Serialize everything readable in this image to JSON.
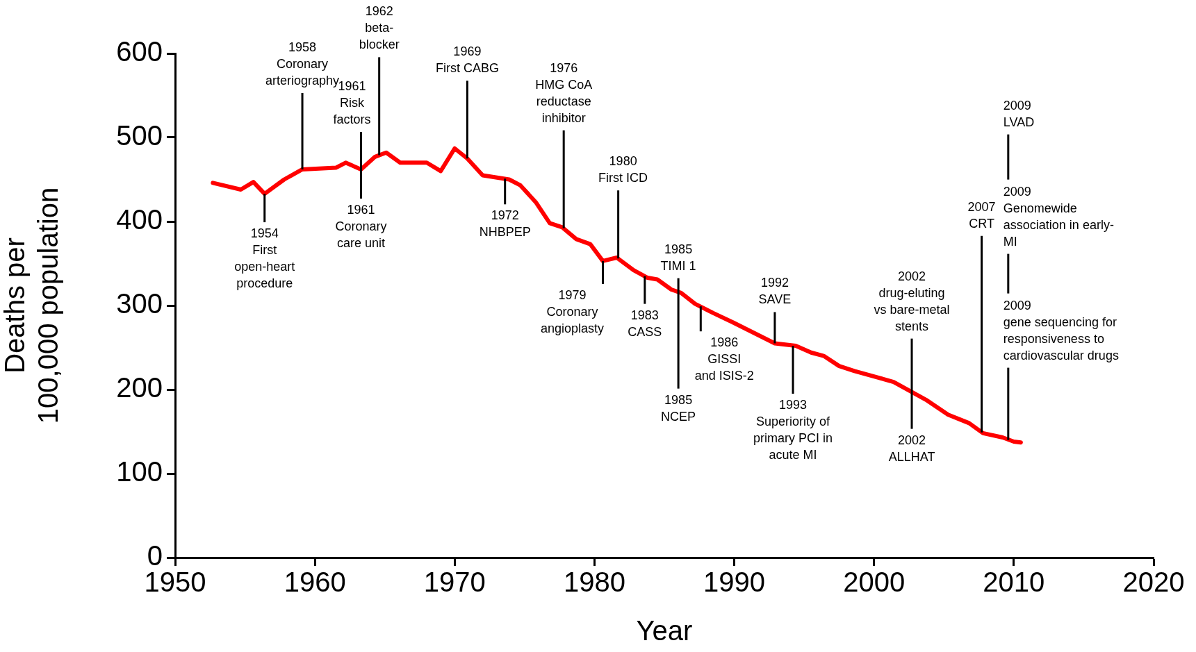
{
  "chart_data": {
    "type": "line",
    "xlabel": "Year",
    "ylabel": "Deaths per\n100,000 population",
    "xlim": [
      1950,
      2020
    ],
    "xticks": [
      1950,
      1960,
      1970,
      1980,
      1990,
      2000,
      2010,
      2020
    ],
    "ylim": [
      0,
      600
    ],
    "yticks": [
      0,
      100,
      200,
      300,
      400,
      500,
      600
    ],
    "grid": false,
    "legend": false,
    "marker": "none",
    "line_style": "solid",
    "series": [
      {
        "color": "#ff0000",
        "x": [
          1952.7,
          1954.7,
          1955.6,
          1956.4,
          1957.8,
          1959.1,
          1961.5,
          1962.2,
          1963.3,
          1964.3,
          1965.1,
          1966.1,
          1968.0,
          1969.0,
          1970.0,
          1970.9,
          1972.0,
          1973.9,
          1974.7,
          1975.8,
          1976.8,
          1977.7,
          1978.7,
          1979.7,
          1980.6,
          1981.6,
          1982.8,
          1983.8,
          1984.5,
          1985.5,
          1986.2,
          1987.2,
          1988.5,
          1989.9,
          1992.9,
          1994.4,
          1995.5,
          1996.4,
          1997.5,
          1998.6,
          2001.4,
          2003.7,
          2005.3,
          2006.8,
          2007.8,
          2009.2,
          2010.0,
          2010.5
        ],
        "values": [
          446,
          438,
          447,
          433,
          450,
          462,
          464,
          470,
          462,
          477,
          482,
          470,
          470,
          460,
          487,
          475,
          455,
          450,
          443,
          423,
          398,
          393,
          379,
          373,
          353,
          357,
          342,
          333,
          331,
          319,
          315,
          302,
          291,
          280,
          255,
          252,
          244,
          240,
          228,
          222,
          209,
          188,
          170,
          160,
          148,
          143,
          138,
          137
        ]
      }
    ],
    "annotations": [
      {
        "text": "1954\nFirst\nopen-heart\nprocedure",
        "x": 1956.4,
        "y": 433
      },
      {
        "text": "1958\nCoronary\narteriography",
        "x": 1959.1,
        "y": 462
      },
      {
        "text": "1961\nRisk\nfactors",
        "x": 1963.3,
        "y": 462
      },
      {
        "text": "1961\nCoronary\ncare unit",
        "x": 1963.3,
        "y": 462
      },
      {
        "text": "1962\nbeta-\nblocker",
        "x": 1964.6,
        "y": 479
      },
      {
        "text": "1969\nFirst CABG",
        "x": 1970.9,
        "y": 475
      },
      {
        "text": "1972\nNHBPEP",
        "x": 1973.6,
        "y": 451
      },
      {
        "text": "1976\nHMG CoA\nreductase\ninhibitor",
        "x": 1977.8,
        "y": 392
      },
      {
        "text": "1979\nCoronary\nangioplasty",
        "x": 1980.6,
        "y": 353
      },
      {
        "text": "1980\nFirst ICD",
        "x": 1981.7,
        "y": 356
      },
      {
        "text": "1983\nCASS",
        "x": 1983.6,
        "y": 335
      },
      {
        "text": "1985\nTIMI 1",
        "x": 1986.0,
        "y": 316
      },
      {
        "text": "1985\nNCEP",
        "x": 1986.0,
        "y": 316
      },
      {
        "text": "1986\nGISSI\nand ISIS-2",
        "x": 1987.6,
        "y": 299
      },
      {
        "text": "1992\nSAVE",
        "x": 1992.9,
        "y": 255
      },
      {
        "text": "1993\nSuperiority of\nprimary PCI in\nacute MI",
        "x": 1994.2,
        "y": 252
      },
      {
        "text": "2002\ndrug-eluting\nvs bare-metal\nstents",
        "x": 2002.7,
        "y": 197
      },
      {
        "text": "2002\nALLHAT",
        "x": 2002.7,
        "y": 197
      },
      {
        "text": "2007\nCRT",
        "x": 2007.7,
        "y": 149
      },
      "2009\nLVAD",
      "2009\nGenomewide\nassociation in early-\nMI",
      {
        "text": "2009\ngene sequencing for\nresponsiveness to\ncardiovascular drugs",
        "x": 2009.6,
        "y": 140
      }
    ]
  }
}
